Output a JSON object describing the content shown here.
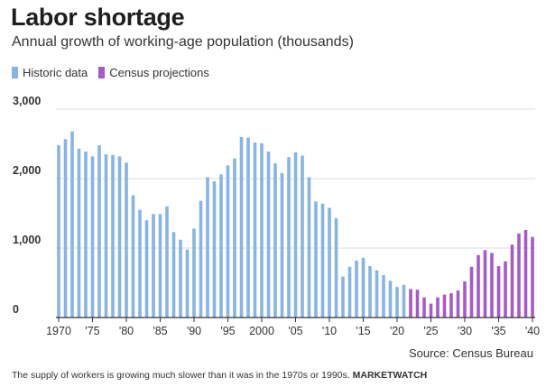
{
  "header": {
    "title": "Labor shortage",
    "subtitle": "Annual growth of working-age population (thousands)"
  },
  "legend": {
    "historic_label": "Historic data",
    "projection_label": "Census projections"
  },
  "colors": {
    "historic": "#88b4e2",
    "projection": "#a45cc4",
    "grid": "#dcdcdc",
    "axis": "#333333"
  },
  "footer": {
    "source": "Source: Census Bureau",
    "caption": "The supply of workers is growing much slower than it was in the 1970s or 1990s.",
    "brand": "MARKETWATCH"
  },
  "chart_data": {
    "type": "bar",
    "title": "Labor shortage",
    "subtitle": "Annual growth of working-age population (thousands)",
    "xlabel": "",
    "ylabel": "",
    "ylim": [
      0,
      3000
    ],
    "yticks": [
      0,
      1000,
      2000,
      3000
    ],
    "ytick_labels": [
      "0",
      "1,000",
      "2,000",
      "3,000"
    ],
    "xticks": [
      1970,
      1975,
      1980,
      1985,
      1990,
      1995,
      2000,
      2005,
      2010,
      2015,
      2020,
      2025,
      2030,
      2035,
      2040
    ],
    "xtick_labels": [
      "1970",
      "'75",
      "'80",
      "'85",
      "'90",
      "'95",
      "2000",
      "'05",
      "'10",
      "'15",
      "'20",
      "'25",
      "'30",
      "'35",
      "'40"
    ],
    "grid": true,
    "legend_position": "top-left",
    "series": [
      {
        "name": "Historic data",
        "x": [
          1970,
          1971,
          1972,
          1973,
          1974,
          1975,
          1976,
          1977,
          1978,
          1979,
          1980,
          1981,
          1982,
          1983,
          1984,
          1985,
          1986,
          1987,
          1988,
          1989,
          1990,
          1991,
          1992,
          1993,
          1994,
          1995,
          1996,
          1997,
          1998,
          1999,
          2000,
          2001,
          2002,
          2003,
          2004,
          2005,
          2006,
          2007,
          2008,
          2009,
          2010,
          2011,
          2012,
          2013,
          2014,
          2015,
          2016,
          2017,
          2018,
          2019,
          2020,
          2021
        ],
        "values": [
          2480,
          2570,
          2680,
          2430,
          2390,
          2320,
          2480,
          2350,
          2340,
          2320,
          2230,
          1760,
          1550,
          1400,
          1490,
          1490,
          1600,
          1230,
          1120,
          980,
          1280,
          1680,
          2020,
          1960,
          2060,
          2190,
          2290,
          2600,
          2590,
          2520,
          2510,
          2390,
          2220,
          2080,
          2310,
          2380,
          2330,
          2020,
          1670,
          1640,
          1580,
          1430,
          590,
          730,
          820,
          860,
          740,
          680,
          610,
          530,
          440,
          470
        ]
      },
      {
        "name": "Census projections",
        "x": [
          2022,
          2023,
          2024,
          2025,
          2026,
          2027,
          2028,
          2029,
          2030,
          2031,
          2032,
          2033,
          2034,
          2035,
          2036,
          2037,
          2038,
          2039,
          2040
        ],
        "values": [
          410,
          400,
          290,
          200,
          290,
          330,
          350,
          390,
          520,
          730,
          900,
          970,
          930,
          740,
          810,
          1050,
          1210,
          1260,
          1160
        ]
      }
    ]
  }
}
